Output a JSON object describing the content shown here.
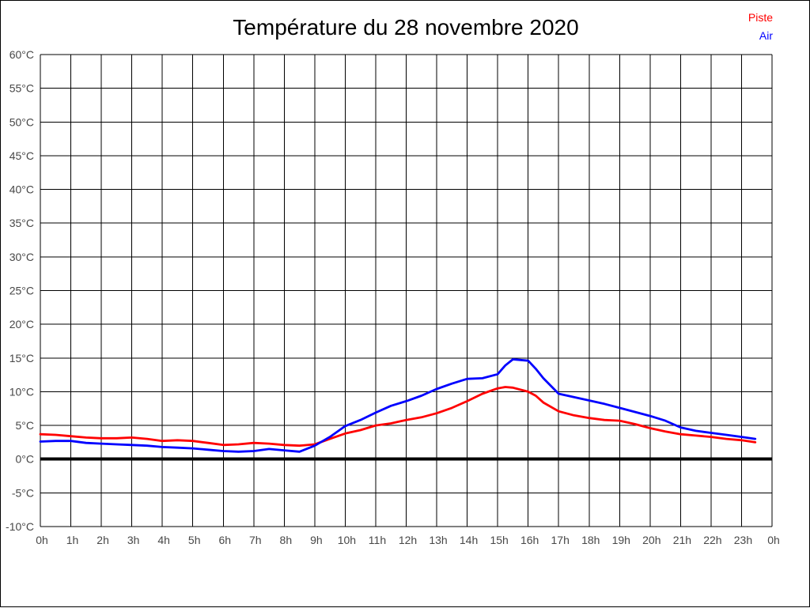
{
  "title": "Température du 28 novembre 2020",
  "legend": {
    "piste": "Piste",
    "air": "Air"
  },
  "colors": {
    "piste": "#ff0000",
    "air": "#0000ff",
    "grid": "#000000",
    "zero_line": "#000000",
    "tick_label": "#474747",
    "background": "#ffffff"
  },
  "chart_data": {
    "type": "line",
    "title": "Température du 28 novembre 2020",
    "xlabel": "",
    "ylabel": "",
    "xlim": [
      0,
      24
    ],
    "ylim": [
      -10,
      60
    ],
    "grid": true,
    "legend_position": "top-right",
    "zero_line": true,
    "x_tick_values": [
      0,
      1,
      2,
      3,
      4,
      5,
      6,
      7,
      8,
      9,
      10,
      11,
      12,
      13,
      14,
      15,
      16,
      17,
      18,
      19,
      20,
      21,
      22,
      23,
      24
    ],
    "x_tick_labels": [
      "0h",
      "1h",
      "2h",
      "3h",
      "4h",
      "5h",
      "6h",
      "7h",
      "8h",
      "9h",
      "10h",
      "11h",
      "12h",
      "13h",
      "14h",
      "15h",
      "16h",
      "17h",
      "18h",
      "19h",
      "20h",
      "21h",
      "22h",
      "23h",
      "0h"
    ],
    "y_tick_values": [
      60,
      55,
      50,
      45,
      40,
      35,
      30,
      25,
      20,
      15,
      10,
      5,
      0,
      -5,
      -10
    ],
    "y_tick_labels": [
      "60°C",
      "55°C",
      "50°C",
      "45°C",
      "40°C",
      "35°C",
      "30°C",
      "25°C",
      "20°C",
      "15°C",
      "10°C",
      "5°C",
      "0°C",
      "-5°C",
      "-10°C"
    ],
    "x": [
      0,
      0.5,
      1,
      1.5,
      2,
      2.5,
      3,
      3.5,
      4,
      4.5,
      5,
      5.5,
      6,
      6.5,
      7,
      7.5,
      8,
      8.5,
      9,
      9.5,
      10,
      10.5,
      11,
      11.5,
      12,
      12.5,
      13,
      13.5,
      14,
      14.5,
      15,
      15.25,
      15.5,
      15.75,
      16,
      16.25,
      16.5,
      17,
      17.5,
      18,
      18.5,
      19,
      19.5,
      20,
      20.5,
      21,
      21.5,
      22,
      22.5,
      23,
      23.45
    ],
    "series": [
      {
        "name": "Piste",
        "color": "#ff0000",
        "values": [
          3.7,
          3.6,
          3.4,
          3.2,
          3.1,
          3.1,
          3.2,
          3.0,
          2.7,
          2.8,
          2.7,
          2.4,
          2.1,
          2.2,
          2.4,
          2.3,
          2.1,
          2.0,
          2.2,
          3.0,
          3.8,
          4.3,
          5.0,
          5.3,
          5.8,
          6.2,
          6.8,
          7.6,
          8.6,
          9.7,
          10.5,
          10.7,
          10.6,
          10.3,
          10.0,
          9.4,
          8.4,
          7.1,
          6.5,
          6.1,
          5.8,
          5.7,
          5.2,
          4.6,
          4.1,
          3.7,
          3.5,
          3.3,
          3.0,
          2.8,
          2.5
        ]
      },
      {
        "name": "Air",
        "color": "#0000ff",
        "values": [
          2.6,
          2.7,
          2.7,
          2.4,
          2.3,
          2.2,
          2.1,
          2.0,
          1.8,
          1.7,
          1.6,
          1.4,
          1.2,
          1.1,
          1.2,
          1.5,
          1.3,
          1.1,
          2.0,
          3.3,
          4.9,
          5.8,
          6.9,
          7.9,
          8.6,
          9.4,
          10.4,
          11.2,
          11.9,
          12.0,
          12.6,
          13.9,
          14.8,
          14.7,
          14.6,
          13.4,
          12.0,
          9.7,
          9.2,
          8.7,
          8.2,
          7.6,
          7.0,
          6.4,
          5.7,
          4.7,
          4.2,
          3.9,
          3.6,
          3.3,
          3.0
        ]
      }
    ]
  }
}
